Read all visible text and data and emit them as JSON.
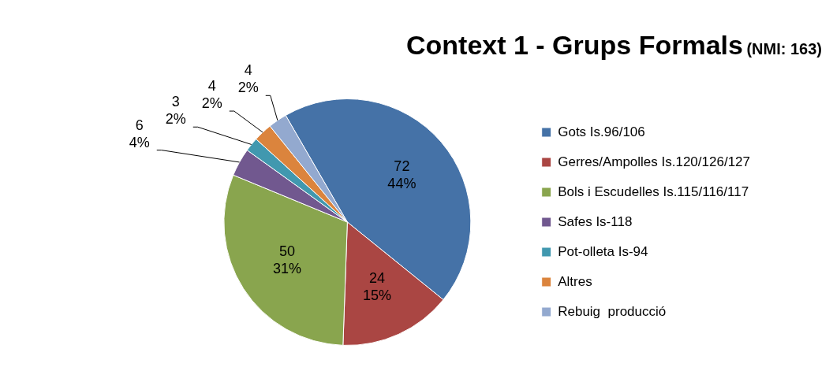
{
  "chart_data": {
    "type": "pie",
    "title": "Context 1 - Grups Formals",
    "subtitle": "(NMI: 163)",
    "categories": [
      "Gots Is.96/106",
      "Gerres/Ampolles Is.120/126/127",
      "Bols i Escudelles Is.115/116/117",
      "Safes Is-118",
      "Pot-olleta Is-94",
      "Altres",
      "Rebuig  producció"
    ],
    "values": [
      72,
      24,
      50,
      6,
      3,
      4,
      4
    ],
    "colors": [
      "#4572a7",
      "#aa4643",
      "#89a54e",
      "#71588f",
      "#4198af",
      "#db843d",
      "#93a9cf"
    ],
    "value_labels": [
      "72\n44%",
      "24\n15%",
      "50\n31%",
      "6\n4%",
      "3\n2%",
      "4\n2%",
      "4\n2%"
    ],
    "legend": "right"
  }
}
